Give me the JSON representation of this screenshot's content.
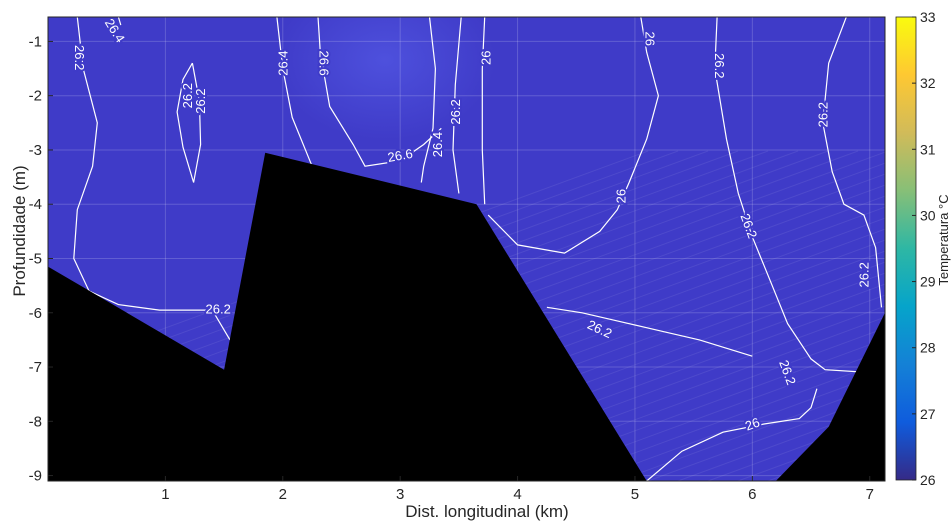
{
  "chart_data": {
    "type": "heatmap",
    "subtype": "filled-contour section",
    "xlabel": "Dist. longitudinal (km)",
    "ylabel": "Profundidade (m)",
    "colorbar_label": "Temperatura °C",
    "xlim": [
      0,
      7.13
    ],
    "ylim": [
      -9.1,
      -0.55
    ],
    "xticks": [
      1,
      2,
      3,
      4,
      5,
      6,
      7
    ],
    "yticks": [
      -1,
      -2,
      -3,
      -4,
      -5,
      -6,
      -7,
      -8,
      -9
    ],
    "colorbar_range": [
      26,
      33
    ],
    "colorbar_ticks": [
      26,
      27,
      28,
      29,
      30,
      31,
      32,
      33
    ],
    "colormap": "parula",
    "field_color": "#3f3bc8",
    "bottom_mask_color": "#000000",
    "contour_color": "#ffffff",
    "bottom_profile": {
      "x": [
        0,
        1.5,
        1.85,
        3.65,
        5.1,
        6.2,
        6.65,
        7.13
      ],
      "depth": [
        -5.15,
        -7.05,
        -3.05,
        -4.0,
        -9.1,
        -9.1,
        -8.1,
        -6.0
      ]
    },
    "contours": [
      {
        "level": 26.4,
        "x": [
          0.6,
          0.62
        ],
        "depth": [
          -0.55,
          -0.7
        ]
      },
      {
        "level": 26.2,
        "x": [
          0.25,
          0.3,
          0.42,
          0.38,
          0.25,
          0.22,
          0.35,
          0.6,
          0.95,
          1.4,
          1.55
        ],
        "depth": [
          -0.55,
          -1.5,
          -2.5,
          -3.3,
          -4.1,
          -5.0,
          -5.6,
          -5.85,
          -5.95,
          -5.95,
          -6.5
        ]
      },
      {
        "level": 26.2,
        "x": [
          1.23,
          1.15,
          1.1,
          1.15,
          1.24,
          1.3,
          1.29,
          1.23
        ],
        "depth": [
          -1.4,
          -1.7,
          -2.3,
          -2.95,
          -3.6,
          -2.9,
          -2.1,
          -1.4
        ]
      },
      {
        "level": 26.4,
        "x": [
          1.95,
          2.0,
          2.08,
          2.25
        ],
        "depth": [
          -0.55,
          -1.5,
          -2.4,
          -3.3
        ]
      },
      {
        "level": 26.6,
        "x": [
          2.3,
          2.32,
          2.4,
          2.6,
          2.7,
          3.0,
          3.2,
          3.35
        ],
        "depth": [
          -0.55,
          -1.2,
          -2.2,
          -2.9,
          -3.3,
          -3.2,
          -2.9,
          -2.6
        ]
      },
      {
        "level": 26.4,
        "x": [
          3.25,
          3.3,
          3.28,
          3.2,
          3.18
        ],
        "depth": [
          -0.55,
          -1.5,
          -2.6,
          -3.3,
          -3.6
        ]
      },
      {
        "level": 26.2,
        "x": [
          3.52,
          3.47,
          3.45,
          3.5
        ],
        "depth": [
          -0.55,
          -1.8,
          -3.0,
          -3.8
        ]
      },
      {
        "level": 26,
        "x": [
          3.72,
          3.7,
          3.7,
          3.72
        ],
        "depth": [
          -0.55,
          -1.5,
          -3.0,
          -4.0
        ]
      },
      {
        "level": 26.2,
        "x": [
          4.25,
          4.55,
          4.85,
          5.25,
          5.55,
          6.0
        ],
        "depth": [
          -5.9,
          -6.0,
          -6.15,
          -6.35,
          -6.5,
          -6.8
        ]
      },
      {
        "level": 26,
        "x": [
          5.05,
          5.1,
          5.2,
          5.1,
          4.95,
          4.85,
          4.7,
          4.4,
          4.0,
          3.75
        ],
        "depth": [
          -0.55,
          -1.2,
          -2.0,
          -2.8,
          -3.6,
          -4.1,
          -4.5,
          -4.9,
          -4.75,
          -4.2
        ]
      },
      {
        "level": 26.2,
        "x": [
          5.7,
          5.68,
          5.78,
          5.88,
          6.0,
          6.15,
          6.3,
          6.5,
          6.62,
          7.0
        ],
        "depth": [
          -0.55,
          -1.5,
          -2.8,
          -3.8,
          -4.6,
          -5.4,
          -6.2,
          -6.85,
          -7.05,
          -7.1
        ]
      },
      {
        "level": 26,
        "x": [
          5.1,
          5.4,
          5.75,
          6.1,
          6.4,
          6.5,
          6.55
        ],
        "depth": [
          -9.1,
          -8.55,
          -8.2,
          -8.05,
          -7.95,
          -7.75,
          -7.4
        ]
      },
      {
        "level": 26.2,
        "x": [
          6.8,
          6.65,
          6.6,
          6.68,
          6.78,
          6.95,
          7.05,
          7.1
        ],
        "depth": [
          -0.55,
          -1.4,
          -2.5,
          -3.4,
          -4.0,
          -4.2,
          -4.8,
          -5.9
        ]
      }
    ],
    "contour_labels": [
      {
        "text": "26.4",
        "x": 0.57,
        "depth": -0.8,
        "angle": 58
      },
      {
        "text": "26.2",
        "x": 0.27,
        "depth": -1.3,
        "angle": 90
      },
      {
        "text": "26.2",
        "x": 1.19,
        "depth": -2.0,
        "angle": 270
      },
      {
        "text": "26.2",
        "x": 1.3,
        "depth": -2.1,
        "angle": 270
      },
      {
        "text": "26.4",
        "x": 2.0,
        "depth": -1.4,
        "angle": 270
      },
      {
        "text": "26.6",
        "x": 2.35,
        "depth": -1.4,
        "angle": 90
      },
      {
        "text": "26.6",
        "x": 3.0,
        "depth": -3.1,
        "angle": -10
      },
      {
        "text": "26.4",
        "x": 3.32,
        "depth": -2.9,
        "angle": 270
      },
      {
        "text": "26.2",
        "x": 3.47,
        "depth": -2.3,
        "angle": 270
      },
      {
        "text": "26",
        "x": 3.73,
        "depth": -1.3,
        "angle": 270
      },
      {
        "text": "26",
        "x": 5.13,
        "depth": -0.95,
        "angle": 90
      },
      {
        "text": "26",
        "x": 4.88,
        "depth": -3.85,
        "angle": 270
      },
      {
        "text": "26.2",
        "x": 5.72,
        "depth": -1.45,
        "angle": 90
      },
      {
        "text": "26.2",
        "x": 6.6,
        "depth": -2.35,
        "angle": 270
      },
      {
        "text": "26.2",
        "x": 5.97,
        "depth": -4.4,
        "angle": 70
      },
      {
        "text": "26.2",
        "x": 6.95,
        "depth": -5.3,
        "angle": 270
      },
      {
        "text": "26.2",
        "x": 1.45,
        "depth": -5.93,
        "angle": 0
      },
      {
        "text": "26.2",
        "x": 4.7,
        "depth": -6.3,
        "angle": 25
      },
      {
        "text": "26.2",
        "x": 6.3,
        "depth": -7.1,
        "angle": 70
      },
      {
        "text": "26",
        "x": 6.0,
        "depth": -8.05,
        "angle": -20
      }
    ]
  }
}
